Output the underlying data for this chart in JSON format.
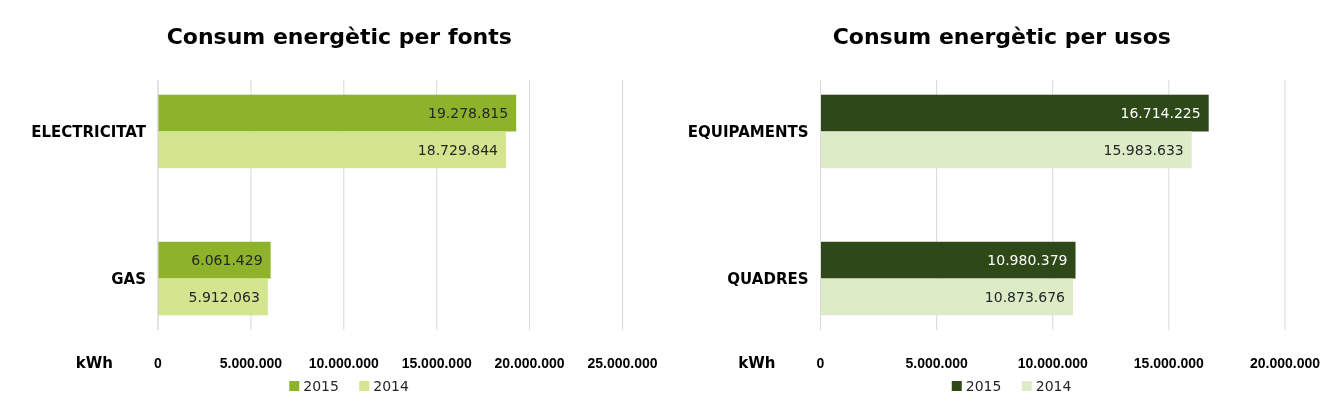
{
  "chart_data": [
    {
      "type": "bar",
      "orientation": "horizontal",
      "title": "Consum energètic per fonts",
      "xlabel": "kWh",
      "categories": [
        "ELECTRICITAT",
        "GAS"
      ],
      "series": [
        {
          "name": "2015",
          "color": "#8db32b",
          "values": [
            19278815,
            6061429
          ],
          "value_labels": [
            "19.278.815",
            "6.061.429"
          ]
        },
        {
          "name": "2014",
          "color": "#d3e58f",
          "values": [
            18729844,
            5912063
          ],
          "value_labels": [
            "18.729.844",
            "5.912.063"
          ]
        }
      ],
      "xlim": [
        0,
        25000000
      ],
      "xticks": [
        0,
        {
          "value": 5000000,
          "label": "5.000.000"
        },
        {
          "value": 10000000,
          "label": "10.000.000"
        },
        {
          "value": 15000000,
          "label": "15.000.000"
        },
        {
          "value": 20000000,
          "label": "20.000.000"
        },
        {
          "value": 25000000,
          "label": "25.000.000"
        }
      ],
      "grid": "x",
      "legend": "bottom"
    },
    {
      "type": "bar",
      "orientation": "horizontal",
      "title": "Consum energètic per usos",
      "xlabel": "kWh",
      "categories": [
        "EQUIPAMENTS",
        "QUADRES"
      ],
      "series": [
        {
          "name": "2015",
          "color": "#2e4818",
          "values": [
            16714225,
            10980379
          ],
          "value_labels": [
            "16.714.225",
            "10.980.379"
          ]
        },
        {
          "name": "2014",
          "color": "#dbecc7",
          "values": [
            15983633,
            10873676
          ],
          "value_labels": [
            "15.983.633",
            "10.873.676"
          ]
        }
      ],
      "xlim": [
        0,
        20000000
      ],
      "xticks": [
        0,
        {
          "value": 5000000,
          "label": "5.000.000"
        },
        {
          "value": 10000000,
          "label": "10.000.000"
        },
        {
          "value": 15000000,
          "label": "15.000.000"
        },
        {
          "value": 20000000,
          "label": "20.000.000"
        }
      ],
      "grid": "x",
      "legend": "bottom"
    }
  ]
}
